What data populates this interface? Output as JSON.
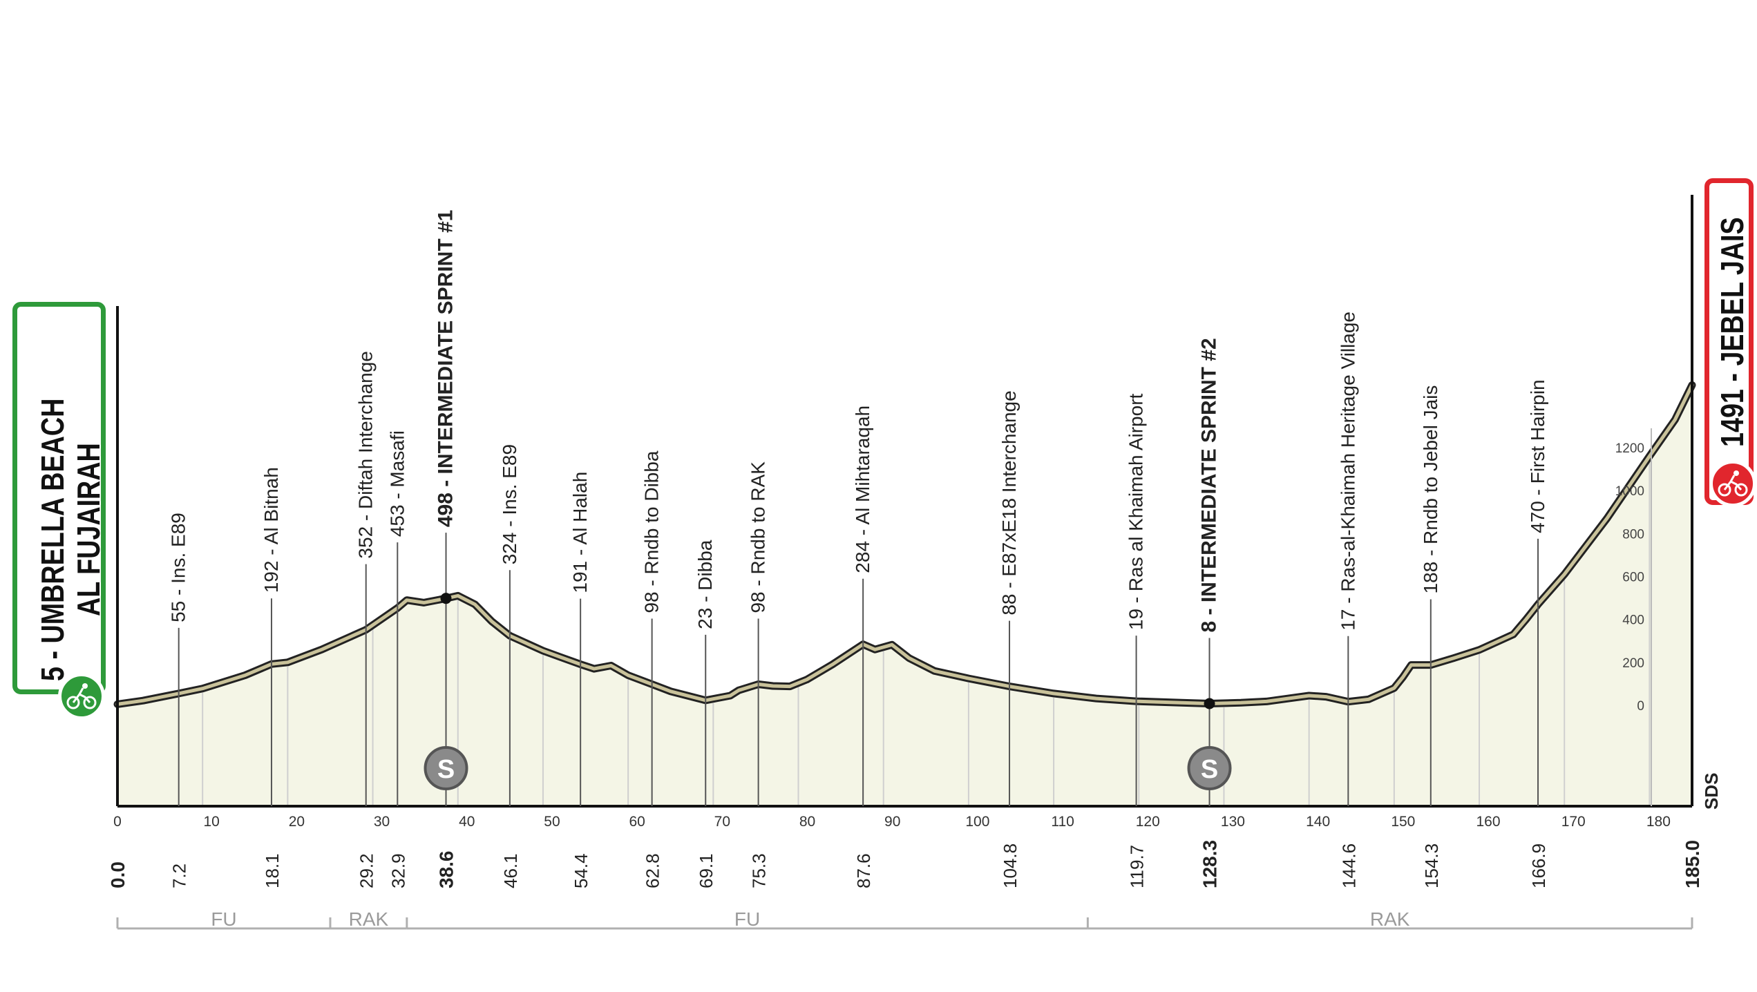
{
  "start": {
    "line1": "5 - UMBRELLA BEACH",
    "line2": "AL FUJAIRAH",
    "icon": "cyclist-icon",
    "color": "#2e9a3a"
  },
  "finish": {
    "text": "1491 - JEBEL JAIS",
    "icon": "cyclist-icon",
    "color": "#e1262d"
  },
  "logo": "SDS",
  "sprint_symbol": "S",
  "chart_data": {
    "type": "area",
    "x_unit": "km",
    "y_unit": "m",
    "xlim": [
      0,
      185
    ],
    "ylim": [
      -470,
      1491
    ],
    "x_ticks": [
      0,
      10,
      20,
      30,
      40,
      50,
      60,
      70,
      80,
      90,
      100,
      110,
      120,
      130,
      140,
      150,
      160,
      170,
      180
    ],
    "y_ticks": [
      0,
      200,
      400,
      600,
      800,
      1000,
      1200
    ],
    "profile": [
      [
        0,
        5
      ],
      [
        3,
        22
      ],
      [
        7.2,
        55
      ],
      [
        10,
        78
      ],
      [
        15,
        140
      ],
      [
        18.1,
        192
      ],
      [
        20,
        200
      ],
      [
        24,
        260
      ],
      [
        29.2,
        352
      ],
      [
        32.9,
        453
      ],
      [
        34,
        490
      ],
      [
        36,
        478
      ],
      [
        38.6,
        498
      ],
      [
        40,
        510
      ],
      [
        42,
        470
      ],
      [
        44,
        390
      ],
      [
        46.1,
        324
      ],
      [
        50,
        254
      ],
      [
        52,
        225
      ],
      [
        54.4,
        191
      ],
      [
        56,
        170
      ],
      [
        58,
        185
      ],
      [
        60,
        140
      ],
      [
        62.8,
        98
      ],
      [
        65,
        65
      ],
      [
        69.1,
        23
      ],
      [
        72,
        45
      ],
      [
        73,
        70
      ],
      [
        75.3,
        98
      ],
      [
        77,
        90
      ],
      [
        79,
        88
      ],
      [
        81,
        120
      ],
      [
        84,
        190
      ],
      [
        87.6,
        284
      ],
      [
        89,
        260
      ],
      [
        91,
        282
      ],
      [
        93,
        220
      ],
      [
        96,
        160
      ],
      [
        100,
        125
      ],
      [
        104.8,
        88
      ],
      [
        110,
        55
      ],
      [
        115,
        32
      ],
      [
        119.7,
        19
      ],
      [
        125,
        12
      ],
      [
        128.3,
        8
      ],
      [
        132,
        12
      ],
      [
        135,
        18
      ],
      [
        140,
        45
      ],
      [
        142,
        40
      ],
      [
        144.6,
        17
      ],
      [
        147,
        28
      ],
      [
        150,
        80
      ],
      [
        151,
        130
      ],
      [
        152,
        188
      ],
      [
        154.3,
        188
      ],
      [
        157,
        220
      ],
      [
        160,
        258
      ],
      [
        164,
        330
      ],
      [
        165.5,
        400
      ],
      [
        166.9,
        470
      ],
      [
        170,
        610
      ],
      [
        175,
        870
      ],
      [
        180,
        1160
      ],
      [
        183,
        1330
      ],
      [
        185,
        1491
      ]
    ],
    "sections": [
      {
        "label": "FU",
        "from": 0,
        "to": 25
      },
      {
        "label": "RAK",
        "from": 25,
        "to": 34
      },
      {
        "label": "FU",
        "from": 34,
        "to": 114
      },
      {
        "label": "RAK",
        "from": 114,
        "to": 185
      }
    ],
    "waypoints": [
      {
        "km": "0.0",
        "name": "",
        "bold": true
      },
      {
        "km": "7.2",
        "name": "55 - Ins. E89"
      },
      {
        "km": "18.1",
        "name": "192 - Al Bitnah"
      },
      {
        "km": "29.2",
        "name": "352 - Diftah Interchange"
      },
      {
        "km": "32.9",
        "name": "453 - Masafi"
      },
      {
        "km": "38.6",
        "name": "498 - INTERMEDIATE SPRINT #1",
        "bold": true,
        "sprint": true
      },
      {
        "km": "46.1",
        "name": "324 - Ins. E89"
      },
      {
        "km": "54.4",
        "name": "191 - Al Halah"
      },
      {
        "km": "62.8",
        "name": "98 - Rndb to Dibba"
      },
      {
        "km": "69.1",
        "name": "23 - Dibba"
      },
      {
        "km": "75.3",
        "name": "98 - Rndb to RAK"
      },
      {
        "km": "87.6",
        "name": "284 - Al Mihtaraqah"
      },
      {
        "km": "104.8",
        "name": "88 - E87xE18 Interchange"
      },
      {
        "km": "119.7",
        "name": "19 - Ras al Khaimah Airport"
      },
      {
        "km": "128.3",
        "name": "8 - INTERMEDIATE SPRINT #2",
        "bold": true,
        "sprint": true
      },
      {
        "km": "144.6",
        "name": "17 - Ras-al-Khaimah Heritage Village"
      },
      {
        "km": "154.3",
        "name": "188 - Rndb to Jebel Jais"
      },
      {
        "km": "166.9",
        "name": "470 - First Hairpin"
      },
      {
        "km": "185.0",
        "name": "",
        "bold": true
      }
    ],
    "colors": {
      "fill": "#f4f5e6",
      "line": "#222222",
      "road": "#c9c29a",
      "grid": "#cfcfcf",
      "accent_green": "#2e9a3a",
      "accent_red": "#e1262d"
    }
  }
}
